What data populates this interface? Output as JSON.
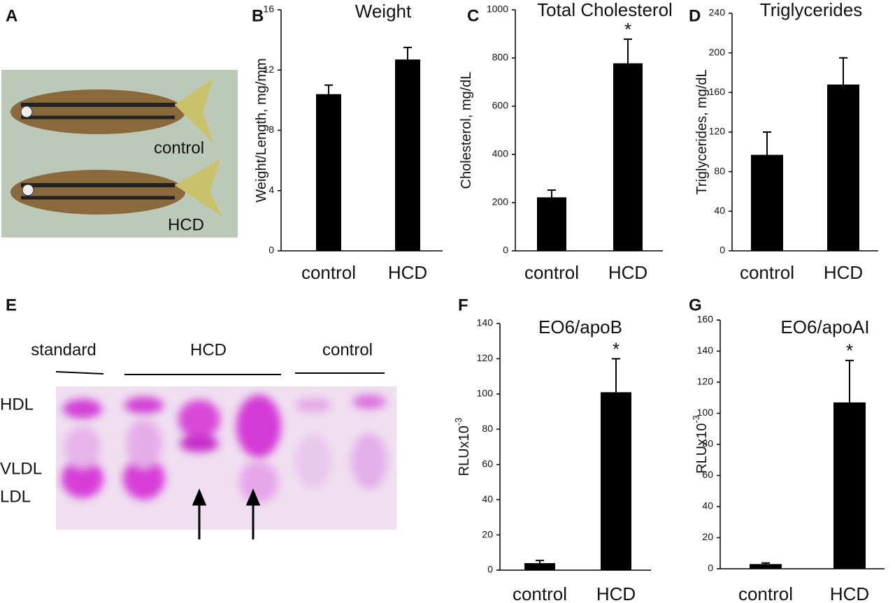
{
  "panel_a": {
    "letter": "A",
    "labels": [
      "control",
      "HCD"
    ]
  },
  "chart_data": [
    {
      "type": "bar",
      "panel": "B",
      "title": "Weight",
      "ylabel": "Weight/Length, mg/mm",
      "categories": [
        "control",
        "HCD"
      ],
      "values": [
        10.4,
        12.7
      ],
      "errors": [
        0.6,
        0.8
      ],
      "color": "#000000",
      "ylim": [
        0,
        16
      ],
      "yticks": [
        0,
        4,
        8,
        12,
        16
      ]
    },
    {
      "type": "bar",
      "panel": "C",
      "title": "Total Cholesterol",
      "ylabel": "Cholesterol, mg/dL",
      "categories": [
        "control",
        "HCD"
      ],
      "values": [
        222,
        778
      ],
      "errors": [
        30,
        100
      ],
      "significance": [
        null,
        "*"
      ],
      "color": "#000000",
      "ylim": [
        0,
        1000
      ],
      "yticks": [
        0,
        200,
        400,
        600,
        800,
        1000
      ]
    },
    {
      "type": "bar",
      "panel": "D",
      "title": "Triglycerides",
      "ylabel": "Triglycerides, mg/dL",
      "categories": [
        "control",
        "HCD"
      ],
      "values": [
        97,
        168
      ],
      "errors": [
        23,
        27
      ],
      "color": "#000000",
      "ylim": [
        0,
        240
      ],
      "yticks": [
        0,
        40,
        80,
        120,
        160,
        200,
        240
      ]
    },
    {
      "type": "bar",
      "panel": "F",
      "title": "EO6/apoB",
      "ylabel": "RLUx10",
      "ylabel_exponent": "-3",
      "categories": [
        "control",
        "HCD"
      ],
      "values": [
        4,
        101
      ],
      "errors": [
        1.5,
        19
      ],
      "significance": [
        null,
        "*"
      ],
      "color": "#000000",
      "ylim": [
        0,
        140
      ],
      "yticks": [
        0,
        20,
        40,
        60,
        80,
        100,
        120,
        140
      ]
    },
    {
      "type": "bar",
      "panel": "G",
      "title": "EO6/apoAI",
      "ylabel": "RLUx10",
      "ylabel_exponent": "-3",
      "categories": [
        "control",
        "HCD"
      ],
      "values": [
        3,
        107
      ],
      "errors": [
        0.7,
        27
      ],
      "significance": [
        null,
        "*"
      ],
      "color": "#000000",
      "ylim": [
        0,
        160
      ],
      "yticks": [
        0,
        20,
        40,
        60,
        80,
        100,
        120,
        140,
        160
      ]
    }
  ],
  "panel_e": {
    "letter": "E",
    "lanes": [
      "standard",
      "HCD",
      "control"
    ],
    "bands": [
      "HDL",
      "VLDL",
      "LDL"
    ]
  }
}
